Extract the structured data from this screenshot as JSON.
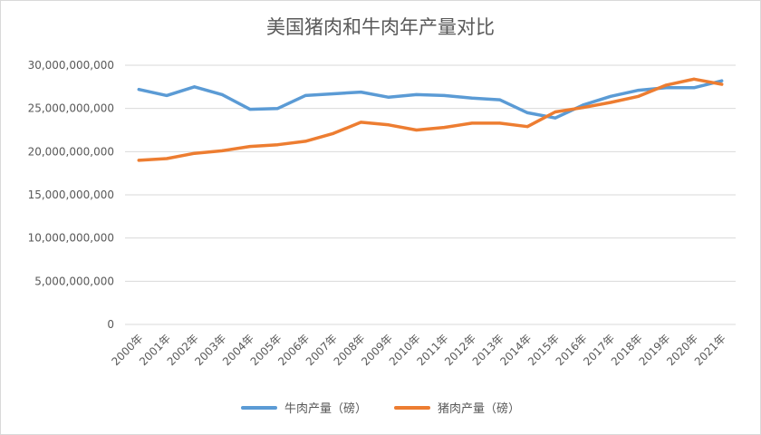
{
  "chart_data": {
    "type": "line",
    "title": "美国猪肉和牛肉年产量对比",
    "xlabel": "",
    "ylabel": "",
    "ylim": [
      0,
      30000000000
    ],
    "yticks": [
      0,
      5000000000,
      10000000000,
      15000000000,
      20000000000,
      25000000000,
      30000000000
    ],
    "ytick_labels": [
      "0",
      "5,000,000,000",
      "10,000,000,000",
      "15,000,000,000",
      "20,000,000,000",
      "25,000,000,000",
      "30,000,000,000"
    ],
    "grid": true,
    "legend_position": "bottom",
    "categories": [
      "2000年",
      "2001年",
      "2002年",
      "2003年",
      "2004年",
      "2005年",
      "2006年",
      "2007年",
      "2008年",
      "2009年",
      "2010年",
      "2011年",
      "2012年",
      "2013年",
      "2014年",
      "2015年",
      "2016年",
      "2017年",
      "2018年",
      "2019年",
      "2020年",
      "2021年"
    ],
    "series": [
      {
        "name": "牛肉产量（磅）",
        "color": "#5b9bd5",
        "values": [
          27200000000,
          26500000000,
          27500000000,
          26600000000,
          24900000000,
          25000000000,
          26500000000,
          26700000000,
          26900000000,
          26300000000,
          26600000000,
          26500000000,
          26200000000,
          26000000000,
          24500000000,
          23900000000,
          25400000000,
          26400000000,
          27100000000,
          27400000000,
          27400000000,
          28200000000
        ]
      },
      {
        "name": "猪肉产量（磅）",
        "color": "#ed7d31",
        "values": [
          19000000000,
          19200000000,
          19800000000,
          20100000000,
          20600000000,
          20800000000,
          21200000000,
          22100000000,
          23400000000,
          23100000000,
          22500000000,
          22800000000,
          23300000000,
          23300000000,
          22900000000,
          24600000000,
          25100000000,
          25700000000,
          26400000000,
          27700000000,
          28400000000,
          27800000000
        ]
      }
    ]
  }
}
